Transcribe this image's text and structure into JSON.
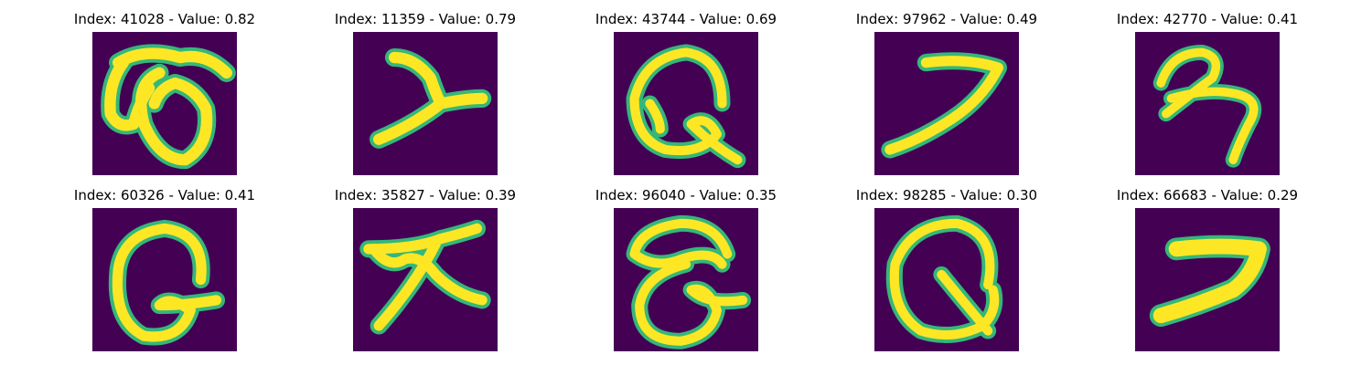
{
  "colors": {
    "background": "#440154",
    "stroke_core": "#fde725",
    "stroke_edge": "#35b779",
    "stroke_mid": "#21918c"
  },
  "panels": [
    {
      "title": "Index: 41028 - Value: 0.82",
      "glyph": "wu-loop"
    },
    {
      "title": "Index: 11359 - Value: 0.79",
      "glyph": "y-stroke"
    },
    {
      "title": "Index: 43744 - Value: 0.69",
      "glyph": "q-loop"
    },
    {
      "title": "Index: 97962 - Value: 0.49",
      "glyph": "seven-stroke"
    },
    {
      "title": "Index: 42770 - Value: 0.41",
      "glyph": "hook-stroke"
    },
    {
      "title": "Index: 60326 - Value: 0.41",
      "glyph": "q-loop"
    },
    {
      "title": "Index: 35827 - Value: 0.39",
      "glyph": "cross-stroke"
    },
    {
      "title": "Index: 96040 - Value: 0.35",
      "glyph": "double-loop"
    },
    {
      "title": "Index: 98285 - Value: 0.30",
      "glyph": "q-loop"
    },
    {
      "title": "Index: 66683 - Value: 0.29",
      "glyph": "seven-thick"
    }
  ]
}
